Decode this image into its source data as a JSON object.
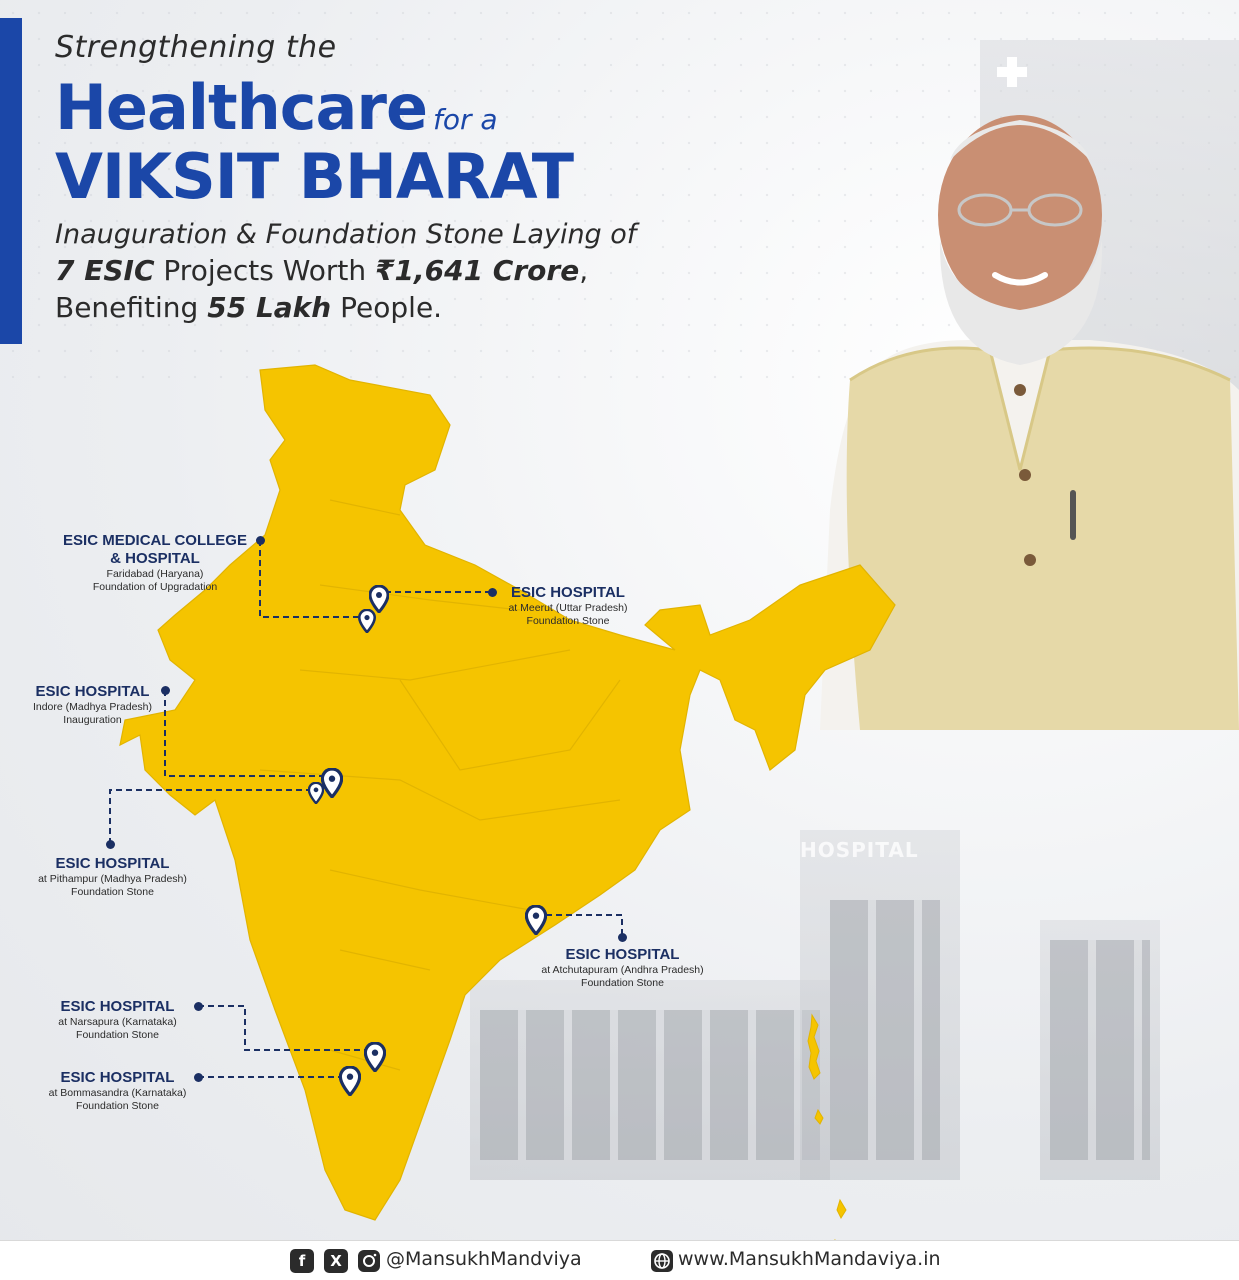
{
  "headline": {
    "line1": "Strengthening the",
    "big_word": "Healthcare",
    "small_words": "for a",
    "line3": "VIKSIT BHARAT",
    "line4": "Inauguration & Foundation Stone Laying of",
    "line5": {
      "num": "7 ESIC",
      "mid": " Projects Worth ",
      "amount": "₹1,641 Crore",
      "end": ","
    },
    "line6": {
      "pre": "Benefiting ",
      "num": "55 Lakh",
      "end": " People."
    }
  },
  "labels": [
    {
      "title": "ESIC MEDICAL COLLEGE",
      "title2": "& HOSPITAL",
      "sub1": "Faridabad (Haryana)",
      "sub2": "Foundation of Upgradation"
    },
    {
      "title": "ESIC HOSPITAL",
      "sub1": "at Meerut (Uttar Pradesh)",
      "sub2": "Foundation Stone"
    },
    {
      "title": "ESIC HOSPITAL",
      "sub1": "Indore (Madhya Pradesh)",
      "sub2": "Inauguration"
    },
    {
      "title": "ESIC HOSPITAL",
      "sub1": "at Pithampur (Madhya Pradesh)",
      "sub2": "Foundation Stone"
    },
    {
      "title": "ESIC HOSPITAL",
      "sub1": "at Atchutapuram (Andhra Pradesh)",
      "sub2": "Foundation Stone"
    },
    {
      "title": "ESIC HOSPITAL",
      "sub1": "at Narsapura (Karnataka)",
      "sub2": "Foundation Stone"
    },
    {
      "title": "ESIC HOSPITAL",
      "sub1": "at Bommasandra (Karnataka)",
      "sub2": "Foundation Stone"
    }
  ],
  "building_sign": "HOSPITAL",
  "footer": {
    "handle": "@MansukhMandviya",
    "website": "www.MansukhMandaviya.in",
    "icons": [
      "facebook-icon",
      "x-icon",
      "instagram-icon",
      "globe-icon"
    ]
  },
  "colors": {
    "brand_blue": "#1b47a8",
    "map_yellow": "#f5c400",
    "label_navy": "#1b2f63"
  }
}
